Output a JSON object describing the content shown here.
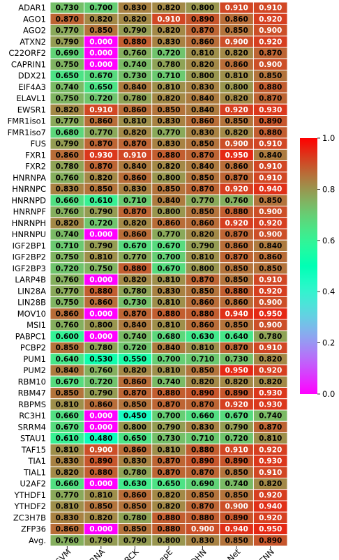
{
  "chart_data": {
    "type": "heatmap",
    "title": "",
    "xlabel": "",
    "ylabel": "",
    "columns": [
      "Pse-SVM",
      "RNA",
      "RCK",
      "iDeepE",
      "iCircDHN",
      "PrismNet",
      "EDCNN"
    ],
    "rows": [
      "ADAR1",
      "AGO1",
      "AGO2",
      "ATXN2",
      "C22ORF2",
      "CAPRIN1",
      "DDX21",
      "EIF4A3",
      "ELAVL1",
      "EWSR1",
      "FMR1iso1",
      "FMR1iso7",
      "FUS",
      "FXR1",
      "FXR2",
      "HNRNPA",
      "HNRNPC",
      "HNRNPD",
      "HNRNPF",
      "HNRNPH",
      "HNRNPU",
      "IGF2BP1",
      "IGF2BP2",
      "IGF2BP3",
      "LARP4B",
      "LIN28A",
      "LIN28B",
      "MOV10",
      "MSI1",
      "PABPC1",
      "PCBP2",
      "PUM1",
      "PUM2",
      "RBM10",
      "RBM47",
      "RBPMS",
      "RC3H1",
      "SRRM4",
      "STAU1",
      "TAF15",
      "TIA1",
      "TIAL1",
      "U2AF2",
      "YTHDF1",
      "YTHDF2",
      "ZC3H7B",
      "ZFP36",
      "Avg."
    ],
    "values": [
      [
        0.73,
        0.7,
        0.83,
        0.82,
        0.8,
        0.91,
        0.91
      ],
      [
        0.87,
        0.82,
        0.82,
        0.91,
        0.89,
        0.86,
        0.92
      ],
      [
        0.77,
        0.85,
        0.79,
        0.82,
        0.87,
        0.85,
        0.9
      ],
      [
        0.79,
        0.0,
        0.88,
        0.83,
        0.86,
        0.9,
        0.92
      ],
      [
        0.69,
        0.0,
        0.76,
        0.72,
        0.81,
        0.82,
        0.87
      ],
      [
        0.75,
        0.0,
        0.74,
        0.78,
        0.82,
        0.86,
        0.9
      ],
      [
        0.65,
        0.67,
        0.73,
        0.71,
        0.8,
        0.81,
        0.85
      ],
      [
        0.74,
        0.65,
        0.84,
        0.81,
        0.83,
        0.8,
        0.88
      ],
      [
        0.75,
        0.72,
        0.78,
        0.82,
        0.84,
        0.82,
        0.87
      ],
      [
        0.82,
        0.91,
        0.86,
        0.85,
        0.84,
        0.92,
        0.93
      ],
      [
        0.77,
        0.86,
        0.81,
        0.83,
        0.86,
        0.85,
        0.89
      ],
      [
        0.68,
        0.77,
        0.82,
        0.77,
        0.83,
        0.82,
        0.88
      ],
      [
        0.79,
        0.87,
        0.87,
        0.83,
        0.85,
        0.9,
        0.91
      ],
      [
        0.86,
        0.93,
        0.91,
        0.88,
        0.87,
        0.95,
        0.84
      ],
      [
        0.78,
        0.87,
        0.84,
        0.82,
        0.84,
        0.86,
        0.91
      ],
      [
        0.76,
        0.82,
        0.86,
        0.8,
        0.85,
        0.87,
        0.91
      ],
      [
        0.83,
        0.85,
        0.83,
        0.85,
        0.87,
        0.92,
        0.94
      ],
      [
        0.66,
        0.61,
        0.71,
        0.84,
        0.77,
        0.76,
        0.85
      ],
      [
        0.76,
        0.79,
        0.87,
        0.8,
        0.85,
        0.88,
        0.9
      ],
      [
        0.82,
        0.72,
        0.82,
        0.86,
        0.86,
        0.92,
        0.92
      ],
      [
        0.74,
        0.0,
        0.86,
        0.77,
        0.82,
        0.87,
        0.9
      ],
      [
        0.71,
        0.79,
        0.67,
        0.67,
        0.79,
        0.86,
        0.84
      ],
      [
        0.75,
        0.81,
        0.77,
        0.7,
        0.81,
        0.87,
        0.86
      ],
      [
        0.72,
        0.75,
        0.88,
        0.67,
        0.8,
        0.85,
        0.85
      ],
      [
        0.76,
        0.0,
        0.82,
        0.81,
        0.87,
        0.85,
        0.91
      ],
      [
        0.77,
        0.88,
        0.78,
        0.83,
        0.85,
        0.88,
        0.92
      ],
      [
        0.75,
        0.86,
        0.73,
        0.81,
        0.86,
        0.86,
        0.9
      ],
      [
        0.86,
        0.0,
        0.87,
        0.88,
        0.88,
        0.94,
        0.95
      ],
      [
        0.76,
        0.8,
        0.84,
        0.81,
        0.86,
        0.85,
        0.9
      ],
      [
        0.6,
        0.0,
        0.74,
        0.68,
        0.63,
        0.64,
        0.78
      ],
      [
        0.85,
        0.78,
        0.72,
        0.84,
        0.81,
        0.87,
        0.91
      ],
      [
        0.64,
        0.53,
        0.55,
        0.7,
        0.71,
        0.73,
        0.82
      ],
      [
        0.84,
        0.76,
        0.82,
        0.81,
        0.85,
        0.95,
        0.92
      ],
      [
        0.67,
        0.72,
        0.86,
        0.74,
        0.82,
        0.82,
        0.82
      ],
      [
        0.85,
        0.79,
        0.87,
        0.88,
        0.89,
        0.89,
        0.93
      ],
      [
        0.81,
        0.86,
        0.85,
        0.87,
        0.87,
        0.92,
        0.93
      ],
      [
        0.66,
        0.0,
        0.45,
        0.7,
        0.66,
        0.67,
        0.74
      ],
      [
        0.67,
        0.0,
        0.8,
        0.79,
        0.83,
        0.79,
        0.87
      ],
      [
        0.61,
        0.48,
        0.65,
        0.73,
        0.71,
        0.72,
        0.81
      ],
      [
        0.81,
        0.9,
        0.86,
        0.81,
        0.88,
        0.91,
        0.92
      ],
      [
        0.83,
        0.89,
        0.83,
        0.87,
        0.89,
        0.89,
        0.93
      ],
      [
        0.82,
        0.88,
        0.78,
        0.87,
        0.87,
        0.85,
        0.91
      ],
      [
        0.66,
        0.0,
        0.63,
        0.65,
        0.69,
        0.74,
        0.82
      ],
      [
        0.77,
        0.81,
        0.86,
        0.82,
        0.85,
        0.85,
        0.92
      ],
      [
        0.81,
        0.85,
        0.85,
        0.82,
        0.87,
        0.9,
        0.94
      ],
      [
        0.83,
        0.82,
        0.78,
        0.88,
        0.88,
        0.89,
        0.92
      ],
      [
        0.86,
        0.0,
        0.85,
        0.88,
        0.9,
        0.94,
        0.95
      ],
      [
        0.76,
        0.79,
        0.79,
        0.8,
        0.83,
        0.85,
        0.89
      ]
    ],
    "colormap": "rainbow",
    "vmin": 0.0,
    "vmax": 1.0,
    "colorbar_ticks": [
      "0.0",
      "0.2",
      "0.4",
      "0.6",
      "0.8",
      "1.0"
    ],
    "value_format": "3 decimals",
    "grid": true,
    "colorbar_position": "right"
  }
}
